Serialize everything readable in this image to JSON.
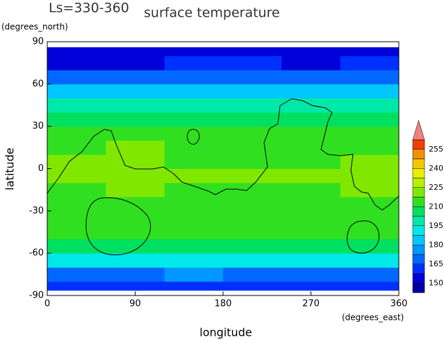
{
  "chart_data": {
    "type": "heatmap",
    "subtitle": "Ls=330-360",
    "title": "surface temperature",
    "xlabel": "longitude",
    "xunits": "(degrees_east)",
    "ylabel": "latitude",
    "yunits": "(degrees_north)",
    "xlim": [
      0,
      360
    ],
    "ylim": [
      -90,
      90
    ],
    "xticks": [
      0,
      90,
      180,
      270,
      360
    ],
    "yticks": [
      90,
      60,
      30,
      0,
      -30,
      -60,
      -90
    ],
    "x": [
      30,
      90,
      150,
      210,
      270,
      330
    ],
    "y": [
      -85,
      -75,
      -65,
      -55,
      -45,
      -35,
      -25,
      -15,
      -5,
      5,
      15,
      25,
      35,
      45,
      55,
      65,
      75,
      85
    ],
    "z": [
      [
        158,
        158,
        159,
        158,
        158,
        159
      ],
      [
        172,
        172,
        173,
        172,
        171,
        172
      ],
      [
        190,
        191,
        191,
        190,
        190,
        190
      ],
      [
        204,
        205,
        205,
        204,
        204,
        205
      ],
      [
        210,
        211,
        211,
        210,
        210,
        211
      ],
      [
        212,
        213,
        212,
        212,
        212,
        213
      ],
      [
        215,
        216,
        215,
        214,
        215,
        215
      ],
      [
        217,
        219,
        217,
        216,
        217,
        218
      ],
      [
        219,
        223,
        219,
        218,
        219,
        220
      ],
      [
        218,
        224,
        217,
        216,
        217,
        219
      ],
      [
        215,
        218,
        215,
        214,
        213,
        216
      ],
      [
        212,
        212,
        211,
        210,
        210,
        212
      ],
      [
        207,
        206,
        206,
        206,
        205,
        207
      ],
      [
        198,
        197,
        198,
        197,
        196,
        198
      ],
      [
        184,
        183,
        185,
        185,
        183,
        185
      ],
      [
        168,
        167,
        170,
        170,
        167,
        170
      ],
      [
        157,
        155,
        160,
        159,
        155,
        159
      ],
      [
        150,
        150,
        151,
        151,
        150,
        151
      ]
    ],
    "zlim": [
      142.5,
      262.5
    ],
    "zticks": [
      150,
      165,
      180,
      195,
      210,
      225,
      240,
      255
    ],
    "colors": [
      "#0000a0",
      "#0000d8",
      "#0030ff",
      "#0068ff",
      "#0098ff",
      "#00c8ff",
      "#00e8e8",
      "#00e8a8",
      "#00e060",
      "#30e020",
      "#80e800",
      "#b8f000",
      "#e8f000",
      "#f0c800",
      "#f09000",
      "#f04000"
    ],
    "over_color": "#f08080"
  }
}
